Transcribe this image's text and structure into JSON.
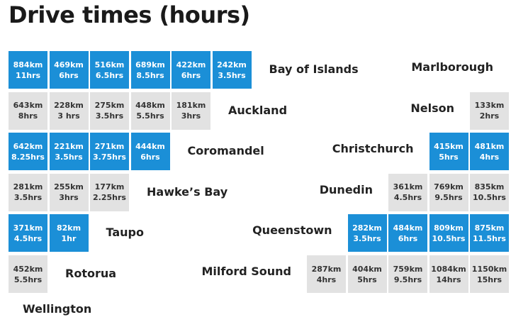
{
  "title": "Drive times (hours)",
  "rows": [
    {
      "left": {
        "place": "Bay of Islands",
        "cells": [
          {
            "distance": "884km",
            "time": "11hrs"
          },
          {
            "distance": "469km",
            "time": "6hrs"
          },
          {
            "distance": "516km",
            "time": "6.5hrs"
          },
          {
            "distance": "689km",
            "time": "8.5hrs"
          },
          {
            "distance": "422km",
            "time": "6hrs"
          },
          {
            "distance": "242km",
            "time": "3.5hrs"
          }
        ]
      },
      "right": {
        "place": "Marlborough",
        "cells": []
      }
    },
    {
      "left": {
        "place": "Auckland",
        "cells": [
          {
            "distance": "643km",
            "time": "8hrs"
          },
          {
            "distance": "228km",
            "time": "3 hrs"
          },
          {
            "distance": "275km",
            "time": "3.5hrs"
          },
          {
            "distance": "448km",
            "time": "5.5hrs"
          },
          {
            "distance": "181km",
            "time": "3hrs"
          }
        ]
      },
      "right": {
        "place": "Nelson",
        "cells": [
          {
            "distance": "133km",
            "time": "2hrs"
          }
        ]
      }
    },
    {
      "left": {
        "place": "Coromandel",
        "cells": [
          {
            "distance": "642km",
            "time": "8.25hrs"
          },
          {
            "distance": "221km",
            "time": "3.5hrs"
          },
          {
            "distance": "271km",
            "time": "3.75hrs"
          },
          {
            "distance": "444km",
            "time": "6hrs"
          }
        ]
      },
      "right": {
        "place": "Christchurch",
        "cells": [
          {
            "distance": "415km",
            "time": "5hrs"
          },
          {
            "distance": "481km",
            "time": "4hrs"
          }
        ]
      }
    },
    {
      "left": {
        "place": "Hawke’s Bay",
        "cells": [
          {
            "distance": "281km",
            "time": "3.5hrs"
          },
          {
            "distance": "255km",
            "time": "3hrs"
          },
          {
            "distance": "177km",
            "time": "2.25hrs"
          }
        ]
      },
      "right": {
        "place": "Dunedin",
        "cells": [
          {
            "distance": "361km",
            "time": "4.5hrs"
          },
          {
            "distance": "769km",
            "time": "9.5hrs"
          },
          {
            "distance": "835km",
            "time": "10.5hrs"
          }
        ]
      }
    },
    {
      "left": {
        "place": "Taupo",
        "cells": [
          {
            "distance": "371km",
            "time": "4.5hrs"
          },
          {
            "distance": "82km",
            "time": "1hr"
          }
        ]
      },
      "right": {
        "place": "Queenstown",
        "cells": [
          {
            "distance": "282km",
            "time": "3.5hrs"
          },
          {
            "distance": "484km",
            "time": "6hrs"
          },
          {
            "distance": "809km",
            "time": "10.5hrs"
          },
          {
            "distance": "875km",
            "time": "11.5hrs"
          }
        ]
      }
    },
    {
      "left": {
        "place": "Rotorua",
        "cells": [
          {
            "distance": "452km",
            "time": "5.5hrs"
          }
        ]
      },
      "right": {
        "place": "Milford Sound",
        "cells": [
          {
            "distance": "287km",
            "time": "4hrs"
          },
          {
            "distance": "404km",
            "time": "5hrs"
          },
          {
            "distance": "759km",
            "time": "9.5hrs"
          },
          {
            "distance": "1084km",
            "time": "14hrs"
          },
          {
            "distance": "1150km",
            "time": "15hrs"
          }
        ]
      }
    },
    {
      "left": {
        "place": "Wellington",
        "cells": []
      }
    }
  ]
}
